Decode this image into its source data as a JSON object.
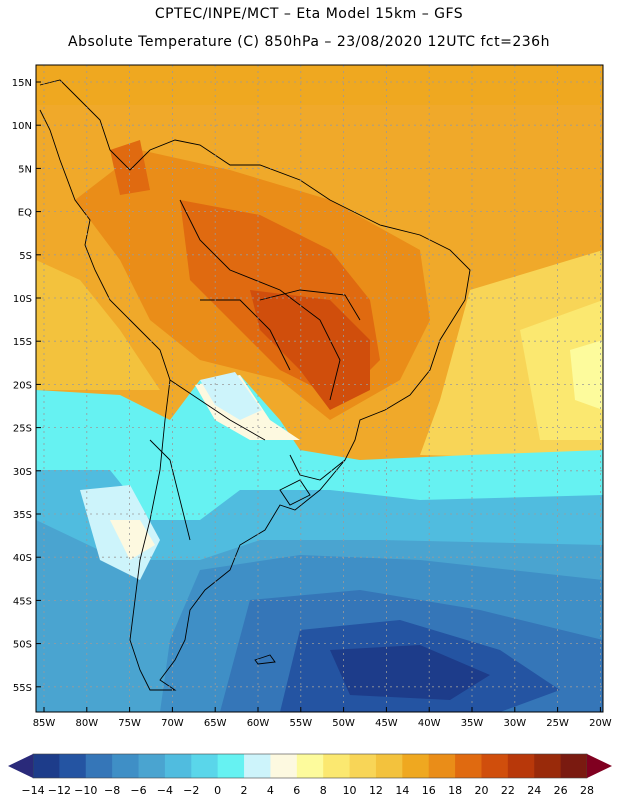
{
  "header": {
    "line1": "CPTEC/INPE/MCT –  Eta Model 15km – GFS",
    "line2": "Absolute Temperature (C) 850hPa – 23/08/2020 12UTC fct=236h"
  },
  "map": {
    "lat_labels": [
      "15N",
      "10N",
      "5N",
      "EQ",
      "5S",
      "10S",
      "15S",
      "20S",
      "25S",
      "30S",
      "35S",
      "40S",
      "45S",
      "50S",
      "55S"
    ],
    "lon_labels": [
      "85W",
      "80W",
      "75W",
      "70W",
      "65W",
      "60W",
      "55W",
      "50W",
      "45W",
      "40W",
      "35W",
      "30W",
      "25W",
      "20W"
    ]
  },
  "colorbar": {
    "colors": [
      "#1d3c8a",
      "#2454a2",
      "#3576b8",
      "#3f8fc6",
      "#4aa4d0",
      "#50bcdf",
      "#5ad6ea",
      "#66f2f2",
      "#cdf4fb",
      "#fdf9e0",
      "#fdfb9c",
      "#fbe870",
      "#f8d557",
      "#f3c23d",
      "#efa820",
      "#ea8d18",
      "#e06a10",
      "#d04e0c",
      "#b8380a",
      "#992a0a",
      "#7a1a10"
    ],
    "labels": [
      "-14",
      "-12",
      "-10",
      "-8",
      "-6",
      "-4",
      "-2",
      "0",
      "2",
      "4",
      "6",
      "8",
      "10",
      "12",
      "14",
      "16",
      "18",
      "20",
      "22",
      "24",
      "26",
      "28"
    ],
    "left_arrow_color": "#2a2a7a",
    "right_arrow_color": "#800020"
  }
}
